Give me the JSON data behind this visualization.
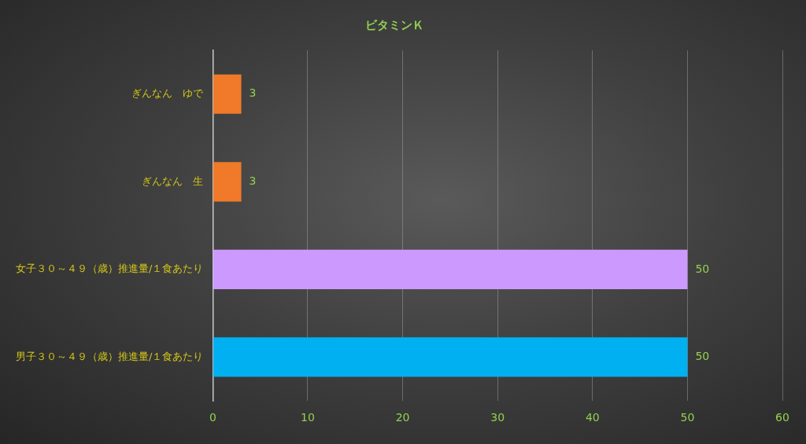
{
  "chart_data": {
    "type": "bar",
    "orientation": "horizontal",
    "title": "ビタミンＫ",
    "categories": [
      "ぎんなん　ゆで",
      "ぎんなん　生",
      "女子３０～４９（歳）推進量/１食あたり",
      "男子３０～４９（歳）推進量/１食あたり"
    ],
    "values": [
      3,
      3,
      50,
      50
    ],
    "colors": [
      "#f07a2a",
      "#f07a2a",
      "#cc99ff",
      "#00b0f0"
    ],
    "xlim": [
      0,
      60
    ],
    "xticks": [
      0,
      10,
      20,
      30,
      40,
      50,
      60
    ],
    "grid": "x",
    "legend": false,
    "data_labels": true
  }
}
